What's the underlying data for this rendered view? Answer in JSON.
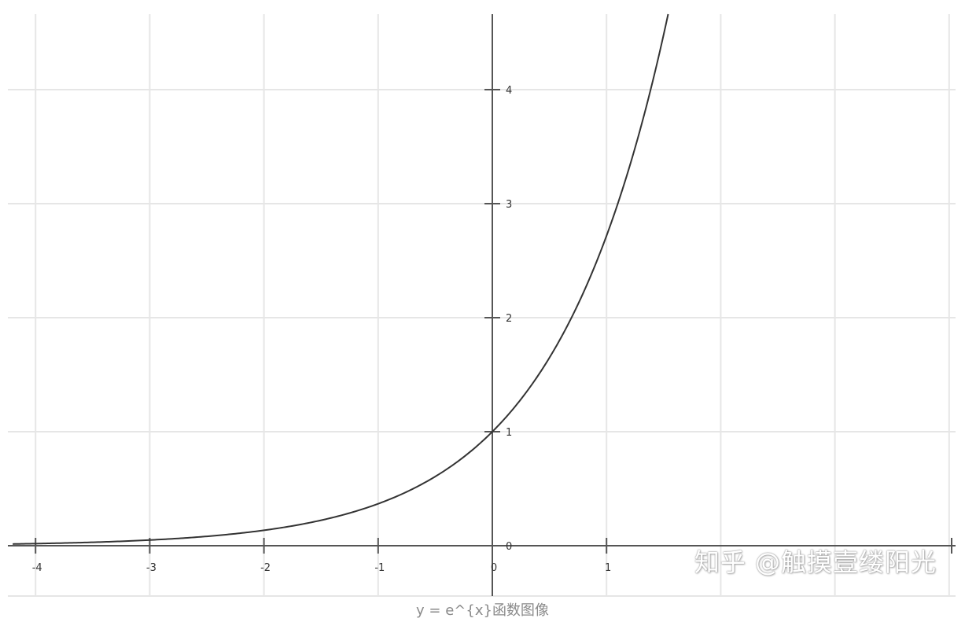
{
  "caption": "y = e^{x}函数图像",
  "watermark": "知乎 @触摸壹缕阳光",
  "colors": {
    "grid": "#e6e6e6",
    "axis": "#555555",
    "curve": "#333333",
    "caption": "#8a8a8a"
  },
  "chart_data": {
    "type": "line",
    "function": "e^x",
    "xlim": [
      -4.2,
      4.05
    ],
    "ylim": [
      -0.45,
      4.65
    ],
    "x_ticks": [
      -4,
      -3,
      -2,
      -1,
      0,
      1
    ],
    "x_tick_labels": [
      "-4",
      "-3",
      "-2",
      "-1",
      "0",
      "1"
    ],
    "y_ticks": [
      0,
      1,
      2,
      3,
      4
    ],
    "y_tick_labels": [
      "0",
      "1",
      "2",
      "3",
      "4"
    ],
    "grid": true,
    "series": [
      {
        "x": [
          -4.2,
          -4,
          -3.5,
          -3,
          -2.5,
          -2,
          -1.5,
          -1,
          -0.5,
          0,
          0.25,
          0.5,
          0.75,
          1,
          1.25,
          1.5,
          1.55
        ],
        "values": [
          0.015,
          0.018,
          0.03,
          0.05,
          0.082,
          0.135,
          0.223,
          0.368,
          0.607,
          1.0,
          1.284,
          1.649,
          2.117,
          2.718,
          3.49,
          4.482,
          4.712
        ]
      }
    ]
  }
}
